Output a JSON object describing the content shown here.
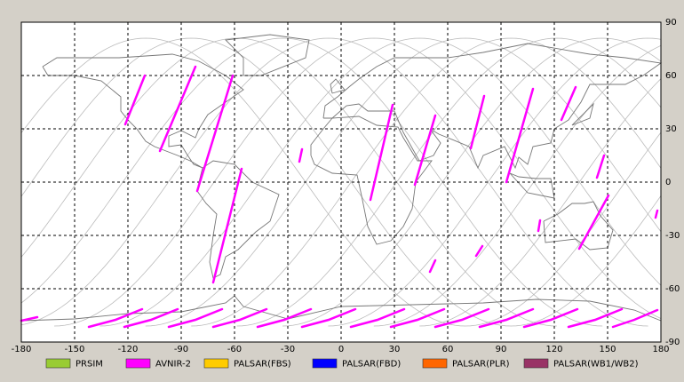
{
  "chart_data": {
    "type": "map",
    "xlim": [
      -180,
      180
    ],
    "ylim": [
      -90,
      90
    ],
    "xticks": [
      -180,
      -150,
      -120,
      -90,
      -60,
      -30,
      0,
      30,
      60,
      90,
      120,
      150,
      180
    ],
    "yticks": [
      90,
      60,
      30,
      0,
      -30,
      -60,
      -90
    ],
    "grid": true,
    "series": [
      {
        "name": "PRSIM",
        "color": "#99cc33",
        "segments": []
      },
      {
        "name": "AVNIR-2",
        "color": "#ff00ff",
        "segments": [
          {
            "x": [
              -110.5,
              -121.5
            ],
            "y": [
              60,
              32.5
            ]
          },
          {
            "x": [
              -82,
              -102
            ],
            "y": [
              65,
              17.5
            ]
          },
          {
            "x": [
              -61,
              -81
            ],
            "y": [
              60,
              -5
            ]
          },
          {
            "x": [
              -56,
              -72
            ],
            "y": [
              7.5,
              -56.5
            ]
          },
          {
            "x": [
              -22,
              -23.5
            ],
            "y": [
              18.5,
              11.5
            ]
          },
          {
            "x": [
              29,
              16.5
            ],
            "y": [
              43.5,
              -10
            ]
          },
          {
            "x": [
              53,
              41.5
            ],
            "y": [
              37.5,
              -1.5
            ]
          },
          {
            "x": [
              53,
              50
            ],
            "y": [
              -44,
              -50.5
            ]
          },
          {
            "x": [
              80.5,
              73
            ],
            "y": [
              48.5,
              19
            ]
          },
          {
            "x": [
              79.5,
              76
            ],
            "y": [
              -36,
              -41.5
            ]
          },
          {
            "x": [
              108,
              93
            ],
            "y": [
              52.5,
              0
            ]
          },
          {
            "x": [
              132,
              124
            ],
            "y": [
              53.5,
              35
            ]
          },
          {
            "x": [
              148,
              144
            ],
            "y": [
              15,
              2.5
            ]
          },
          {
            "x": [
              150.5,
              134
            ],
            "y": [
              -7.5,
              -37.5
            ]
          },
          {
            "x": [
              112,
              111
            ],
            "y": [
              -21.5,
              -27.5
            ]
          },
          {
            "x": [
              178,
              177
            ],
            "y": [
              -16,
              -20
            ]
          },
          {
            "x": [
              -180,
              -171
            ],
            "y": [
              -78,
              -76
            ]
          },
          {
            "x": [
              -142,
              -127,
              -112
            ],
            "y": [
              -81.5,
              -77.5,
              -71.5
            ]
          },
          {
            "x": [
              -122,
              -107,
              -92
            ],
            "y": [
              -81.5,
              -77.5,
              -71.5
            ]
          },
          {
            "x": [
              -97,
              -82,
              -67
            ],
            "y": [
              -81.5,
              -77.5,
              -71.5
            ]
          },
          {
            "x": [
              -72,
              -57,
              -42
            ],
            "y": [
              -81.5,
              -77.5,
              -71.5
            ]
          },
          {
            "x": [
              -47,
              -32,
              -17
            ],
            "y": [
              -81.5,
              -77.5,
              -71.5
            ]
          },
          {
            "x": [
              -22,
              -7,
              8
            ],
            "y": [
              -81.5,
              -77.5,
              -71.5
            ]
          },
          {
            "x": [
              5.5,
              20.5,
              35.5
            ],
            "y": [
              -81.5,
              -77.5,
              -71.5
            ]
          },
          {
            "x": [
              28,
              43,
              58
            ],
            "y": [
              -81.5,
              -77.5,
              -71.5
            ]
          },
          {
            "x": [
              53,
              68,
              83
            ],
            "y": [
              -81.5,
              -77.5,
              -71.5
            ]
          },
          {
            "x": [
              78,
              93,
              108
            ],
            "y": [
              -81.5,
              -77.5,
              -71.5
            ]
          },
          {
            "x": [
              103,
              118,
              133
            ],
            "y": [
              -81.5,
              -77.5,
              -71.5
            ]
          },
          {
            "x": [
              128,
              143,
              158
            ],
            "y": [
              -81.5,
              -77.5,
              -71.5
            ]
          },
          {
            "x": [
              153,
              165,
              178
            ],
            "y": [
              -81.5,
              -77.5,
              -72
            ]
          }
        ]
      },
      {
        "name": "PALSAR(FBS)",
        "color": "#ffcc00",
        "segments": []
      },
      {
        "name": "PALSAR(FBD)",
        "color": "#0000ff",
        "segments": []
      },
      {
        "name": "PALSAR(PLR)",
        "color": "#ff6600",
        "segments": []
      },
      {
        "name": "PALSAR(WB1/WB2)",
        "color": "#993366",
        "segments": []
      }
    ]
  }
}
